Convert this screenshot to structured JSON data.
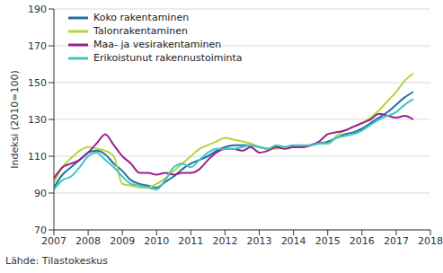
{
  "chart_data": {
    "type": "line",
    "ylabel": "Indeksi (2010=100)",
    "source": "Lähde: Tilastokeskus",
    "x": [
      2007.0,
      2007.25,
      2007.5,
      2007.75,
      2008.0,
      2008.25,
      2008.5,
      2008.75,
      2009.0,
      2009.25,
      2009.5,
      2009.75,
      2010.0,
      2010.25,
      2010.5,
      2010.75,
      2011.0,
      2011.25,
      2011.5,
      2011.75,
      2012.0,
      2012.25,
      2012.5,
      2012.75,
      2013.0,
      2013.25,
      2013.5,
      2013.75,
      2014.0,
      2014.25,
      2014.5,
      2014.75,
      2015.0,
      2015.25,
      2015.5,
      2015.75,
      2016.0,
      2016.25,
      2016.5,
      2016.75,
      2017.0,
      2017.25,
      2017.5
    ],
    "series": [
      {
        "name": "Koko rakentaminen",
        "color": "#1f70a8",
        "values": [
          93,
          100,
          104,
          108,
          112,
          113,
          111,
          106,
          102,
          97,
          95,
          94,
          93,
          96,
          99,
          103,
          106,
          108,
          110,
          113,
          115,
          116,
          116,
          116,
          115,
          114,
          115,
          115,
          115,
          115,
          116,
          117,
          118,
          120,
          122,
          123,
          125,
          128,
          131,
          134,
          138,
          142,
          145
        ]
      },
      {
        "name": "Talonrakentaminen",
        "color": "#b7d43a",
        "values": [
          96,
          104,
          109,
          113,
          115,
          114,
          113,
          110,
          95,
          94,
          93,
          93,
          95,
          98,
          102,
          106,
          110,
          114,
          116,
          118,
          120,
          119,
          118,
          117,
          115,
          114,
          114,
          115,
          116,
          115,
          116,
          117,
          117,
          121,
          124,
          126,
          128,
          131,
          135,
          140,
          145,
          151,
          155
        ]
      },
      {
        "name": "Maa- ja vesirakentaminen",
        "color": "#9c1f8f",
        "values": [
          98,
          104,
          106,
          108,
          112,
          117,
          122,
          116,
          110,
          106,
          101,
          101,
          100,
          101,
          100,
          101,
          101,
          103,
          108,
          112,
          114,
          114,
          113,
          115,
          112,
          113,
          115,
          114,
          115,
          115,
          116,
          118,
          122,
          123,
          124,
          126,
          128,
          130,
          133,
          132,
          131,
          132,
          130
        ]
      },
      {
        "name": "Erikoistunut rakennustoiminta",
        "color": "#3fc6c3",
        "values": [
          92,
          97,
          99,
          104,
          110,
          112,
          108,
          104,
          99,
          95,
          94,
          93,
          92,
          97,
          104,
          106,
          104,
          108,
          112,
          114,
          114,
          114,
          115,
          116,
          115,
          114,
          116,
          115,
          116,
          116,
          116,
          117,
          117,
          120,
          121,
          122,
          124,
          127,
          130,
          132,
          134,
          138,
          141
        ]
      }
    ],
    "xlim": [
      2007,
      2018
    ],
    "xticks": [
      2007,
      2008,
      2009,
      2010,
      2011,
      2012,
      2013,
      2014,
      2015,
      2016,
      2017,
      2018
    ],
    "ylim": [
      70,
      190
    ],
    "yticks": [
      70,
      90,
      110,
      130,
      150,
      170,
      190
    ],
    "grid": true,
    "legend": "top-left"
  }
}
